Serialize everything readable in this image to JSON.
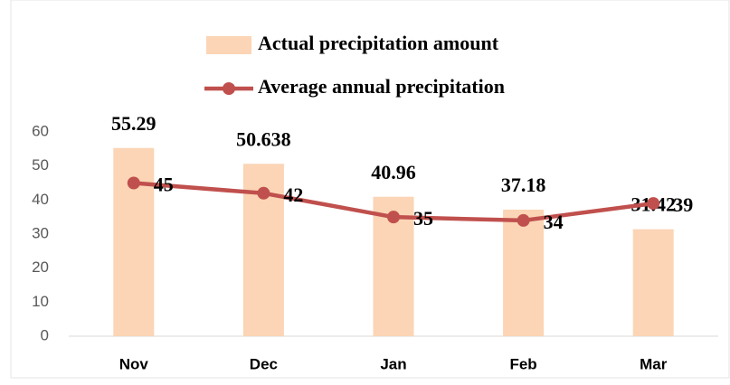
{
  "chart_data": {
    "type": "combo",
    "categories": [
      "Nov",
      "Dec",
      "Jan",
      "Feb",
      "Mar"
    ],
    "series": [
      {
        "name": "Actual precipitation amount",
        "type": "bar",
        "color": "#fbd5b5",
        "values": [
          55.29,
          50.638,
          40.96,
          37.18,
          31.42
        ]
      },
      {
        "name": "Average annual precipitation",
        "type": "line",
        "color": "#c0504d",
        "values": [
          45,
          42,
          35,
          34,
          39
        ]
      }
    ],
    "ylim": [
      0,
      60
    ],
    "yticks": [
      0,
      10,
      20,
      30,
      40,
      50,
      60
    ],
    "grid": false
  }
}
